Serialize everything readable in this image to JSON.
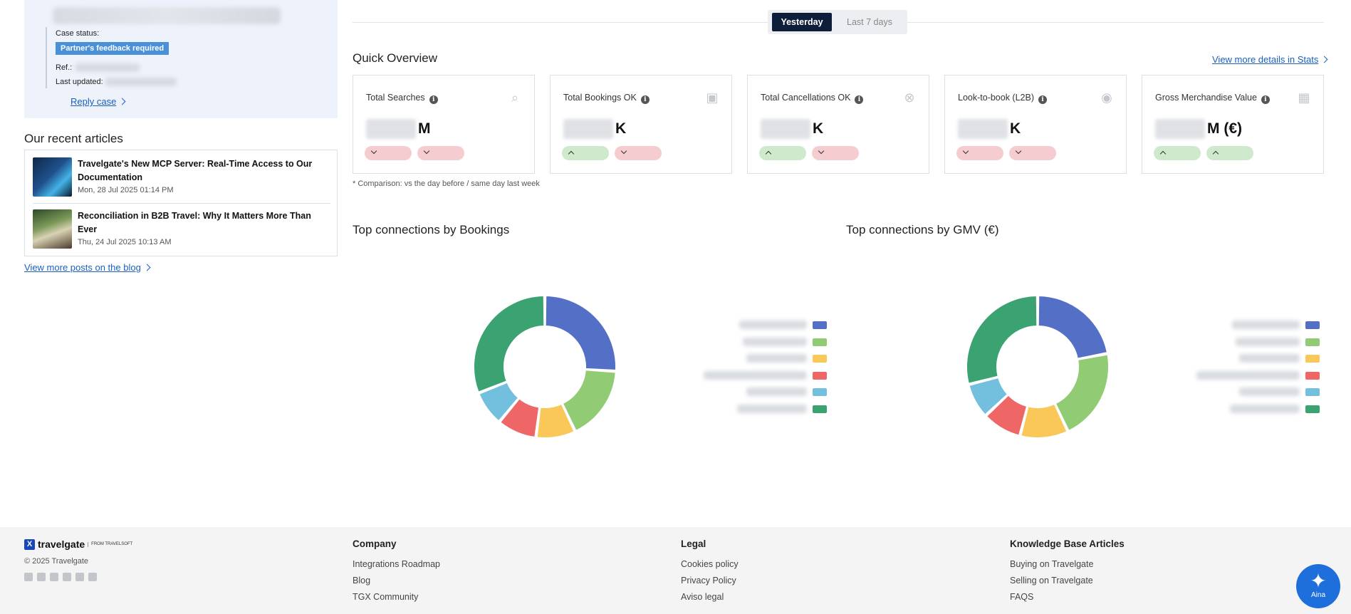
{
  "case": {
    "status_label": "Case status:",
    "status_badge": "Partner's feedback required",
    "ref_label": "Ref.:",
    "updated_label": "Last updated:",
    "reply_link": "Reply case"
  },
  "articles": {
    "title": "Our recent articles",
    "items": [
      {
        "title": "Travelgate's New MCP Server: Real-Time Access to Our Documentation",
        "date": "Mon, 28 Jul 2025 01:14 PM"
      },
      {
        "title": "Reconciliation in B2B Travel: Why It Matters More Than Ever",
        "date": "Thu, 24 Jul 2025 10:13 AM"
      }
    ],
    "more_link": "View more posts on the blog"
  },
  "period_toggle": {
    "active": "Yesterday",
    "inactive": "Last 7 days"
  },
  "overview": {
    "title": "Quick Overview",
    "details_link": "View more details in Stats",
    "comparison_note": "* Comparison: vs the day before / same day last week",
    "cards": [
      {
        "label": "Total Searches",
        "unit": "M",
        "icon": "search-icon",
        "trend": [
          "down",
          "down"
        ]
      },
      {
        "label": "Total Bookings OK",
        "unit": "K",
        "icon": "money-icon",
        "trend": [
          "up",
          "down"
        ]
      },
      {
        "label": "Total Cancellations OK",
        "unit": "K",
        "icon": "cancel-circle-icon",
        "trend": [
          "up",
          "down"
        ]
      },
      {
        "label": "Look-to-book (L2B)",
        "unit": "K",
        "icon": "eye-icon",
        "trend": [
          "down",
          "down"
        ]
      },
      {
        "label": "Gross Merchandise Value",
        "unit": "M (€)",
        "icon": "gift-icon",
        "trend": [
          "up",
          "up"
        ]
      }
    ]
  },
  "charts": {
    "colors": [
      "#5470c6",
      "#91cc75",
      "#fac858",
      "#ee6666",
      "#73c0de",
      "#3ba272"
    ],
    "bookings": {
      "title": "Top connections by Bookings"
    },
    "gmv": {
      "title": "Top connections by GMV (€)"
    }
  },
  "chart_data": [
    {
      "type": "pie",
      "title": "Top connections by Bookings",
      "values": [
        26,
        17,
        9,
        9,
        8,
        31
      ]
    },
    {
      "type": "pie",
      "title": "Top connections by GMV (€)",
      "values": [
        22,
        21,
        11,
        9,
        8,
        29
      ]
    }
  ],
  "footer": {
    "logo_text": "travelgate",
    "logo_sub": "FROM TRAVELSOFT",
    "copyright": "© 2025 Travelgate",
    "columns": [
      {
        "title": "Company",
        "items": [
          "Integrations Roadmap",
          "Blog",
          "TGX Community"
        ]
      },
      {
        "title": "Legal",
        "items": [
          "Cookies policy",
          "Privacy Policy",
          "Aviso legal"
        ]
      },
      {
        "title": "Knowledge Base Articles",
        "items": [
          "Buying on Travelgate",
          "Selling on Travelgate",
          "FAQS"
        ]
      }
    ]
  },
  "assistant": {
    "label": "Aina"
  }
}
